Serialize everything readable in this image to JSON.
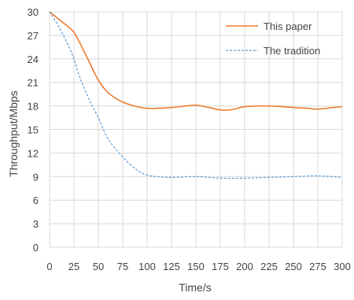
{
  "chart_data": {
    "type": "line",
    "xlabel": "Time/s",
    "ylabel": "Throughput/Mbps",
    "xlim": [
      0,
      300
    ],
    "ylim": [
      0,
      30
    ],
    "xticks": [
      "0",
      "25",
      "50",
      "75",
      "100",
      "125",
      "150",
      "175",
      "200",
      "225",
      "250",
      "275",
      "300"
    ],
    "yticks": [
      "0",
      "3",
      "6",
      "9",
      "12",
      "15",
      "18",
      "21",
      "24",
      "27",
      "30"
    ],
    "grid": true,
    "legend_position": "top-right",
    "series": [
      {
        "name": "This paper",
        "color": "#ED7D31",
        "style": "solid",
        "x": [
          0,
          10,
          20,
          25,
          30,
          40,
          50,
          60,
          75,
          90,
          100,
          110,
          125,
          140,
          150,
          160,
          175,
          185,
          200,
          215,
          225,
          240,
          250,
          265,
          275,
          290,
          300
        ],
        "y": [
          30.0,
          29.0,
          28.0,
          27.4,
          26.3,
          23.8,
          21.3,
          19.7,
          18.5,
          17.9,
          17.7,
          17.7,
          17.8,
          18.0,
          18.1,
          17.9,
          17.5,
          17.5,
          17.9,
          18.0,
          18.0,
          17.9,
          17.8,
          17.7,
          17.6,
          17.8,
          17.9
        ]
      },
      {
        "name": "The tradition",
        "color": "#5B9BD5",
        "style": "dashed",
        "x": [
          0,
          10,
          20,
          25,
          30,
          40,
          50,
          60,
          75,
          90,
          100,
          110,
          125,
          150,
          175,
          200,
          225,
          250,
          275,
          300
        ],
        "y": [
          30.0,
          28.0,
          25.5,
          24.0,
          22.0,
          19.0,
          16.5,
          13.8,
          11.5,
          9.8,
          9.2,
          9.0,
          8.9,
          9.0,
          8.8,
          8.8,
          8.9,
          9.0,
          9.1,
          8.9
        ]
      }
    ]
  }
}
